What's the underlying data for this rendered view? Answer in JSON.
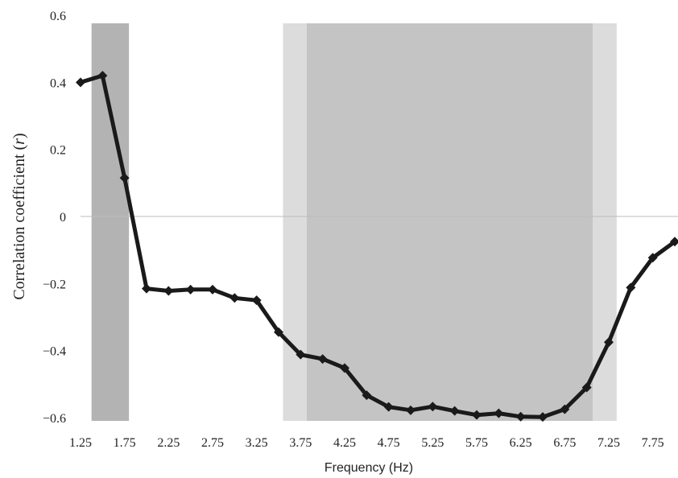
{
  "chart_data": {
    "type": "line",
    "xlabel": "Frequency (Hz)",
    "ylabel": "Correlation coefficient (r)",
    "ylabel_main": "Correlation coefficient (",
    "ylabel_italic": "r",
    "ylabel_close": ")",
    "xlim": [
      1.25,
      8.0
    ],
    "ylim": [
      -0.6,
      0.6
    ],
    "x_ticks": [
      "1.25",
      "1.75",
      "2.25",
      "2.75",
      "3.25",
      "3.75",
      "4.25",
      "4.75",
      "5.25",
      "5.75",
      "6.25",
      "6.75",
      "7.25",
      "7.75"
    ],
    "y_ticks": [
      "0.6",
      "0.4",
      "0.2",
      "0",
      "−0.2",
      "−0.4",
      "−0.6"
    ],
    "zero_line": true,
    "shaded_regions": [
      {
        "x0": 1.375,
        "x1": 1.8,
        "color": "#b3b3b3"
      },
      {
        "x0": 3.55,
        "x1": 3.82,
        "color": "#dcdcdc"
      },
      {
        "x0": 3.82,
        "x1": 7.07,
        "color": "#c4c4c4"
      },
      {
        "x0": 7.07,
        "x1": 7.34,
        "color": "#dcdcdc"
      }
    ],
    "series": [
      {
        "color": "#1a1a1a",
        "x": [
          1.25,
          1.5,
          1.75,
          2.0,
          2.25,
          2.5,
          2.75,
          3.0,
          3.25,
          3.5,
          3.75,
          4.0,
          4.25,
          4.5,
          4.75,
          5.0,
          5.25,
          5.5,
          5.75,
          6.0,
          6.25,
          6.5,
          6.75,
          7.0,
          7.25,
          7.5,
          7.75,
          8.0
        ],
        "y": [
          0.4,
          0.42,
          0.115,
          -0.215,
          -0.222,
          -0.218,
          -0.218,
          -0.243,
          -0.25,
          -0.345,
          -0.412,
          -0.425,
          -0.452,
          -0.533,
          -0.568,
          -0.578,
          -0.567,
          -0.58,
          -0.592,
          -0.587,
          -0.597,
          -0.598,
          -0.575,
          -0.51,
          -0.375,
          -0.212,
          -0.123,
          -0.075
        ]
      }
    ]
  }
}
